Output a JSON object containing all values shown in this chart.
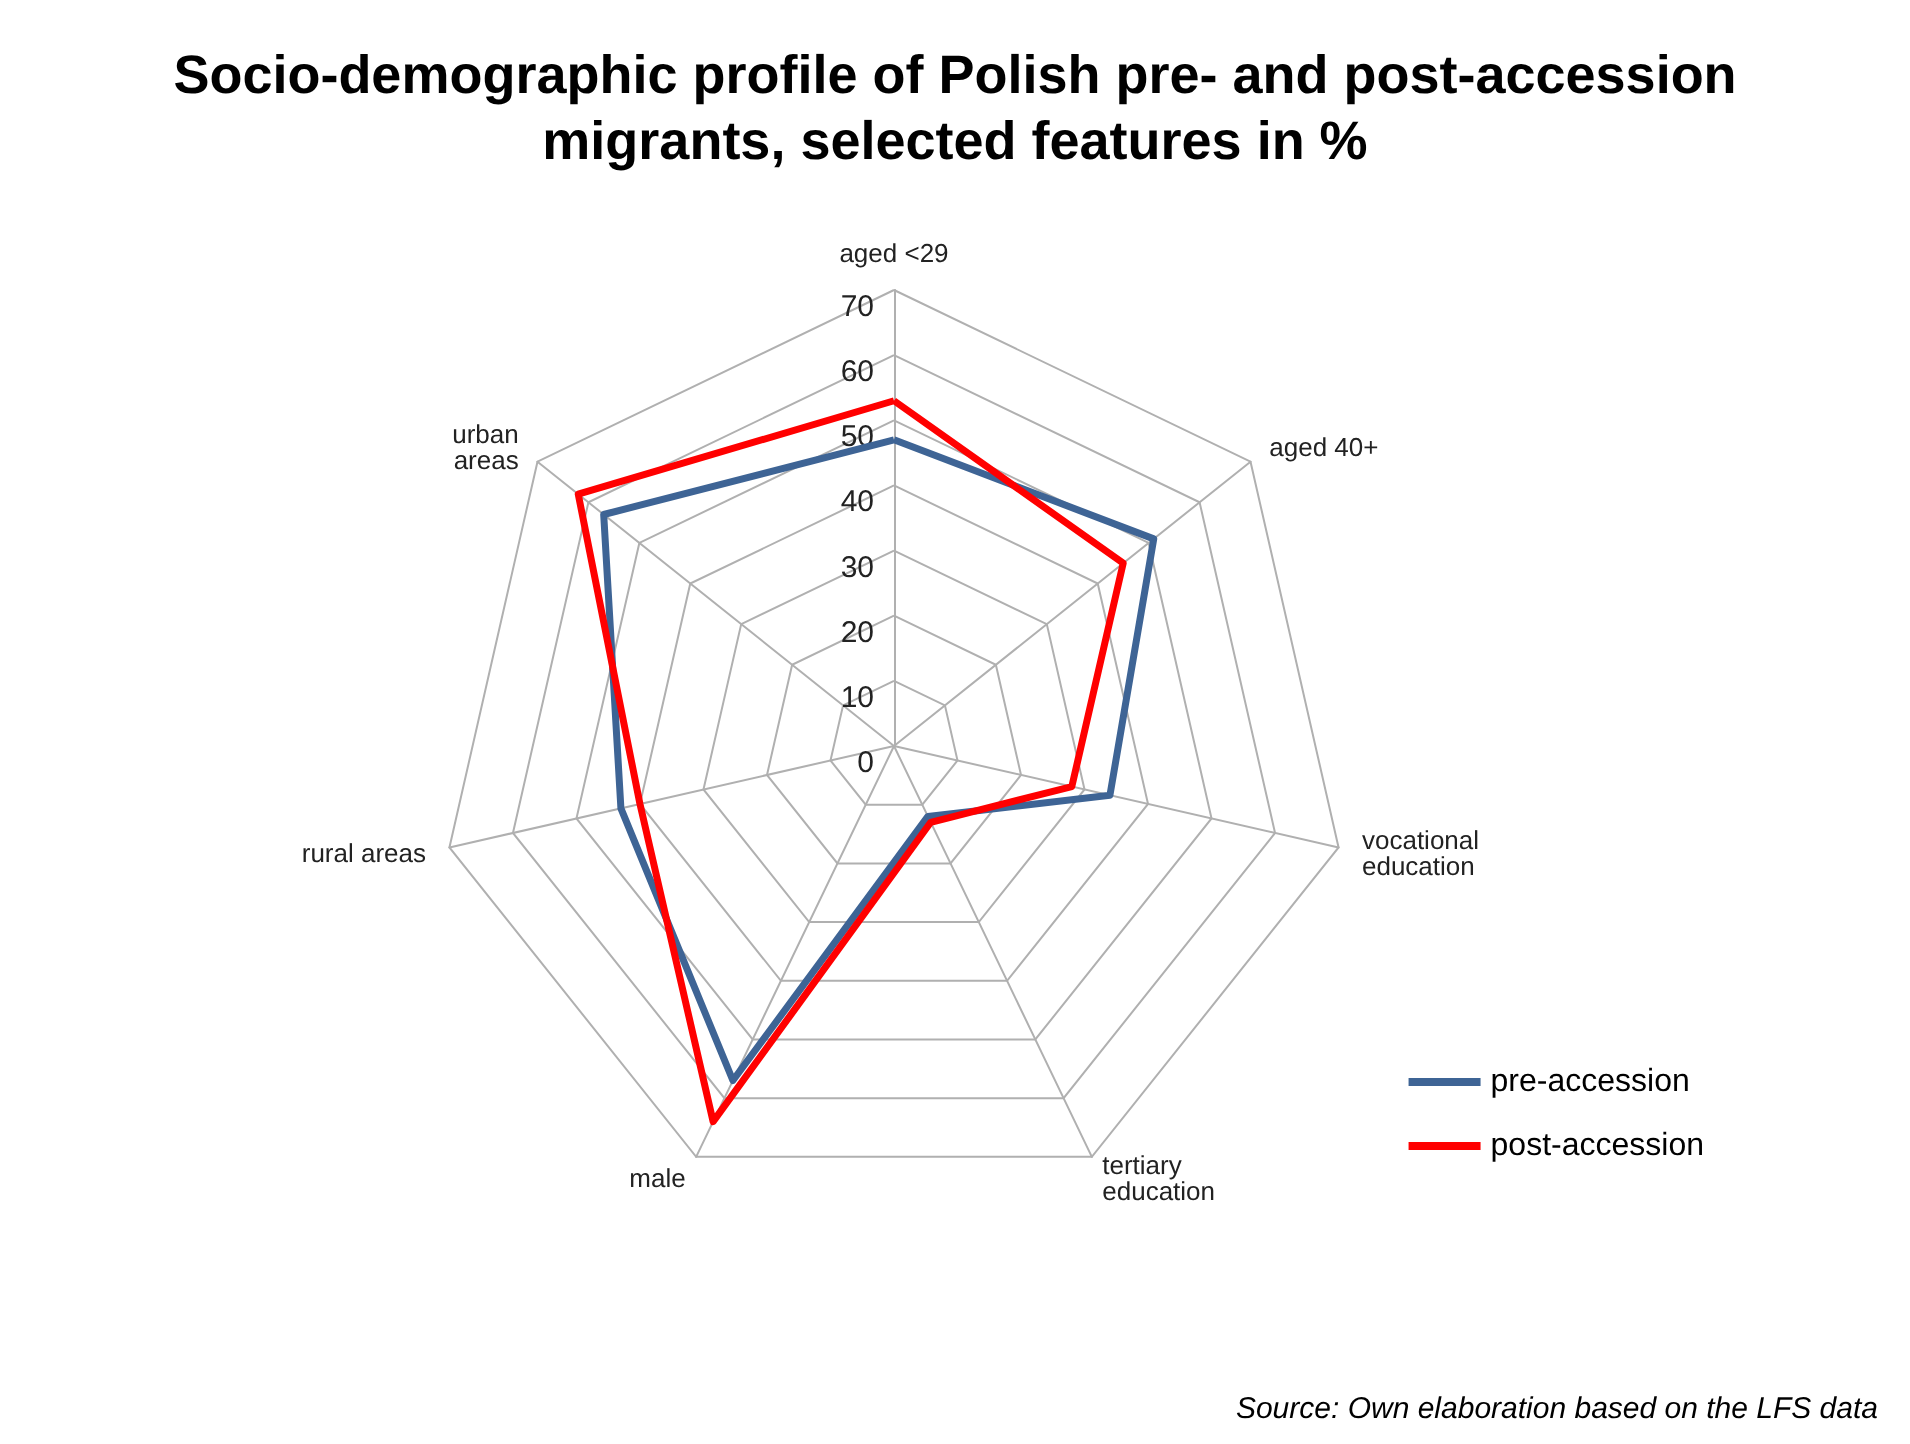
{
  "chart_data": {
    "type": "radar",
    "title": "Socio-demographic profile of Polish pre- and post-accession\nmigrants, selected features in %",
    "categories": [
      "aged <29",
      "aged 40+",
      "vocational\neducation",
      "tertiary\neducation",
      "male",
      "rural areas",
      "urban\nareas"
    ],
    "series": [
      {
        "name": "pre-accession",
        "color": "#3e6495",
        "values": [
          47,
          51,
          34,
          12,
          57,
          43,
          57
        ]
      },
      {
        "name": "post-accession",
        "color": "#ff0000",
        "values": [
          53,
          45,
          28,
          13,
          64,
          40,
          62
        ]
      }
    ],
    "ylim": [
      0,
      70
    ],
    "yticks": [
      0,
      10,
      20,
      30,
      40,
      50,
      60,
      70
    ],
    "grid": true,
    "legend": "right",
    "marker": "none",
    "line_style": "solid",
    "annotations": [
      "Source: Own elaboration based on the LFS data"
    ]
  }
}
